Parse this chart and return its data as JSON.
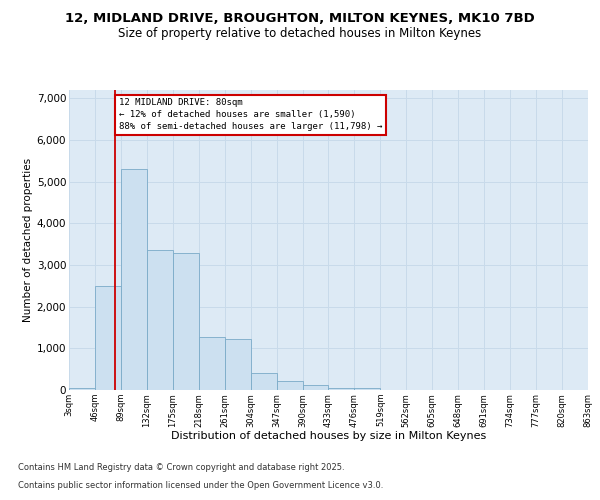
{
  "title_line1": "12, MIDLAND DRIVE, BROUGHTON, MILTON KEYNES, MK10 7BD",
  "title_line2": "Size of property relative to detached houses in Milton Keynes",
  "xlabel": "Distribution of detached houses by size in Milton Keynes",
  "ylabel": "Number of detached properties",
  "bin_edges": [
    3,
    46,
    89,
    132,
    175,
    218,
    261,
    304,
    347,
    390,
    433,
    476,
    519,
    562,
    605,
    648,
    691,
    734,
    777,
    820,
    863
  ],
  "bin_labels": [
    "3sqm",
    "46sqm",
    "89sqm",
    "132sqm",
    "175sqm",
    "218sqm",
    "261sqm",
    "304sqm",
    "347sqm",
    "390sqm",
    "433sqm",
    "476sqm",
    "519sqm",
    "562sqm",
    "605sqm",
    "648sqm",
    "691sqm",
    "734sqm",
    "777sqm",
    "820sqm",
    "863sqm"
  ],
  "values": [
    50,
    2500,
    5300,
    3350,
    3300,
    1280,
    1220,
    400,
    220,
    130,
    55,
    50,
    10,
    5,
    2,
    1,
    1,
    0,
    0,
    0
  ],
  "bar_color": "#cce0f0",
  "bar_edge_color": "#7aaac8",
  "grid_color": "#c8daea",
  "property_line_x": 80,
  "annotation_title": "12 MIDLAND DRIVE: 80sqm",
  "annotation_line1": "← 12% of detached houses are smaller (1,590)",
  "annotation_line2": "88% of semi-detached houses are larger (11,798) →",
  "annotation_box_color": "#ffffff",
  "annotation_border_color": "#cc0000",
  "property_line_color": "#cc0000",
  "ylim": [
    0,
    7200
  ],
  "yticks": [
    0,
    1000,
    2000,
    3000,
    4000,
    5000,
    6000,
    7000
  ],
  "footnote1": "Contains HM Land Registry data © Crown copyright and database right 2025.",
  "footnote2": "Contains public sector information licensed under the Open Government Licence v3.0.",
  "plot_bg_color": "#ddeaf5",
  "fig_bg_color": "#ffffff"
}
